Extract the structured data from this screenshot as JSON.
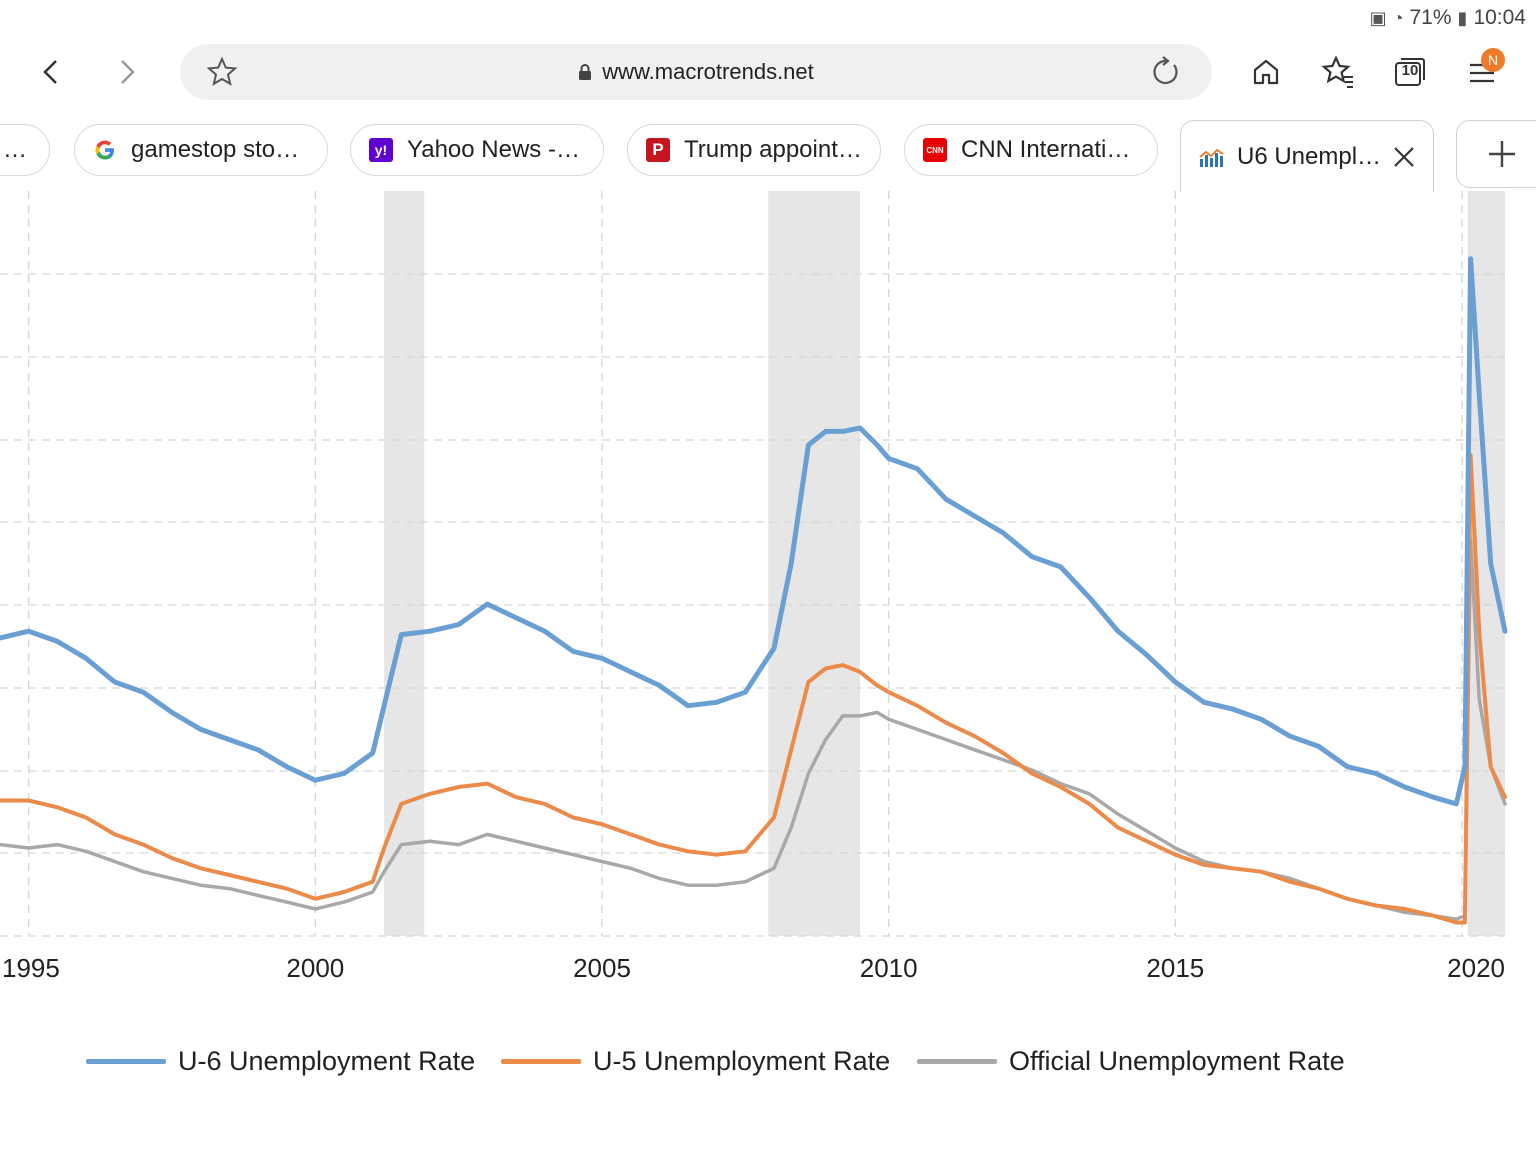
{
  "status_bar": {
    "battery": "71%",
    "time": "10:04"
  },
  "toolbar": {
    "url": "www.macrotrends.net",
    "menu_badge": "N",
    "tab_count": "10"
  },
  "tabs": [
    {
      "label": "…",
      "favicon": "partial"
    },
    {
      "label": "gamestop stoc…",
      "favicon": "google-icon"
    },
    {
      "label": "Yahoo News - …",
      "favicon": "yahoo-icon",
      "favicon_text": "y!"
    },
    {
      "label": "Trump appoint…",
      "favicon": "p-icon",
      "favicon_text": "P"
    },
    {
      "label": "CNN Internatio…",
      "favicon": "cnn-icon",
      "favicon_text": "CNN"
    },
    {
      "label": "U6 Unempl…",
      "favicon": "macrotrends-icon",
      "active": true
    }
  ],
  "colors": {
    "u6": "#6a9fd4",
    "u5": "#ec8a4a",
    "official": "#a8a8a8",
    "recession": "#e6e6e6"
  },
  "chart_data": {
    "type": "line",
    "xlabel": "",
    "ylabel": "",
    "x_ticks": [
      "1995",
      "2000",
      "2005",
      "2010",
      "2015",
      "2020"
    ],
    "xlim": [
      1994.5,
      2020.75
    ],
    "ylim": [
      3,
      25
    ],
    "grid": true,
    "recessions": [
      [
        2001.2,
        2001.9
      ],
      [
        2007.9,
        2009.5
      ],
      [
        2020.1,
        2020.75
      ]
    ],
    "legend_position": "bottom",
    "series": [
      {
        "name": "U-6 Unemployment Rate",
        "color_key": "u6",
        "x": [
          1994.5,
          1995,
          1995.5,
          1996,
          1996.5,
          1997,
          1997.5,
          1998,
          1998.5,
          1999,
          1999.5,
          2000,
          2000.5,
          2001,
          2001.2,
          2001.5,
          2002,
          2002.5,
          2003,
          2003.5,
          2004,
          2004.5,
          2005,
          2005.5,
          2006,
          2006.5,
          2007,
          2007.5,
          2008,
          2008.3,
          2008.6,
          2008.9,
          2009.2,
          2009.5,
          2009.8,
          2010,
          2010.5,
          2011,
          2011.5,
          2012,
          2012.5,
          2013,
          2013.5,
          2014,
          2014.5,
          2015,
          2015.5,
          2016,
          2016.5,
          2017,
          2017.5,
          2018,
          2018.5,
          2019,
          2019.5,
          2019.9,
          2020.05,
          2020.15,
          2020.3,
          2020.5,
          2020.75
        ],
        "y": [
          11.8,
          12.0,
          11.7,
          11.2,
          10.5,
          10.2,
          9.6,
          9.1,
          8.8,
          8.5,
          8.0,
          7.6,
          7.8,
          8.4,
          9.8,
          11.9,
          12.0,
          12.2,
          12.8,
          12.4,
          12.0,
          11.4,
          11.2,
          10.8,
          10.4,
          9.8,
          9.9,
          10.2,
          11.5,
          14.0,
          17.5,
          17.9,
          17.9,
          18.0,
          17.5,
          17.1,
          16.8,
          15.9,
          15.4,
          14.9,
          14.2,
          13.9,
          13.0,
          12.0,
          11.3,
          10.5,
          9.9,
          9.7,
          9.4,
          8.9,
          8.6,
          8.0,
          7.8,
          7.4,
          7.1,
          6.9,
          8.0,
          23.0,
          19.0,
          14.0,
          12.0
        ]
      },
      {
        "name": "U-5 Unemployment Rate",
        "color_key": "u5",
        "x": [
          1994.5,
          1995,
          1995.5,
          1996,
          1996.5,
          1997,
          1997.5,
          1998,
          1998.5,
          1999,
          1999.5,
          2000,
          2000.5,
          2001,
          2001.2,
          2001.5,
          2002,
          2002.5,
          2003,
          2003.5,
          2004,
          2004.5,
          2005,
          2005.5,
          2006,
          2006.5,
          2007,
          2007.5,
          2008,
          2008.3,
          2008.6,
          2008.9,
          2009.2,
          2009.5,
          2009.8,
          2010,
          2010.5,
          2011,
          2011.5,
          2012,
          2012.5,
          2013,
          2013.5,
          2014,
          2014.5,
          2015,
          2015.5,
          2016,
          2016.5,
          2017,
          2017.5,
          2018,
          2018.5,
          2019,
          2019.5,
          2019.9,
          2020.05,
          2020.15,
          2020.3,
          2020.5,
          2020.75
        ],
        "y": [
          7.0,
          7.0,
          6.8,
          6.5,
          6.0,
          5.7,
          5.3,
          5.0,
          4.8,
          4.6,
          4.4,
          4.1,
          4.3,
          4.6,
          5.6,
          6.9,
          7.2,
          7.4,
          7.5,
          7.1,
          6.9,
          6.5,
          6.3,
          6.0,
          5.7,
          5.5,
          5.4,
          5.5,
          6.5,
          8.5,
          10.5,
          10.9,
          11.0,
          10.8,
          10.4,
          10.2,
          9.8,
          9.3,
          8.9,
          8.4,
          7.8,
          7.4,
          6.9,
          6.2,
          5.8,
          5.4,
          5.1,
          5.0,
          4.9,
          4.6,
          4.4,
          4.1,
          3.9,
          3.8,
          3.6,
          3.4,
          3.4,
          17.2,
          12.0,
          8.0,
          7.1
        ]
      },
      {
        "name": "Official Unemployment Rate",
        "color_key": "official",
        "x": [
          1994.5,
          1995,
          1995.5,
          1996,
          1996.5,
          1997,
          1997.5,
          1998,
          1998.5,
          1999,
          1999.5,
          2000,
          2000.5,
          2001,
          2001.2,
          2001.5,
          2002,
          2002.5,
          2003,
          2003.5,
          2004,
          2004.5,
          2005,
          2005.5,
          2006,
          2006.5,
          2007,
          2007.5,
          2008,
          2008.3,
          2008.6,
          2008.9,
          2009.2,
          2009.5,
          2009.8,
          2010,
          2010.5,
          2011,
          2011.5,
          2012,
          2012.5,
          2013,
          2013.5,
          2014,
          2014.5,
          2015,
          2015.5,
          2016,
          2016.5,
          2017,
          2017.5,
          2018,
          2018.5,
          2019,
          2019.5,
          2019.9,
          2020.05,
          2020.15,
          2020.3,
          2020.5,
          2020.75
        ],
        "y": [
          5.7,
          5.6,
          5.7,
          5.5,
          5.2,
          4.9,
          4.7,
          4.5,
          4.4,
          4.2,
          4.0,
          3.8,
          4.0,
          4.3,
          4.9,
          5.7,
          5.8,
          5.7,
          6.0,
          5.8,
          5.6,
          5.4,
          5.2,
          5.0,
          4.7,
          4.5,
          4.5,
          4.6,
          5.0,
          6.2,
          7.8,
          8.8,
          9.5,
          9.5,
          9.6,
          9.4,
          9.1,
          8.8,
          8.5,
          8.2,
          7.9,
          7.5,
          7.2,
          6.6,
          6.1,
          5.6,
          5.2,
          5.0,
          4.9,
          4.7,
          4.4,
          4.1,
          3.9,
          3.7,
          3.6,
          3.5,
          3.6,
          14.7,
          10.0,
          8.0,
          6.9
        ]
      }
    ]
  }
}
